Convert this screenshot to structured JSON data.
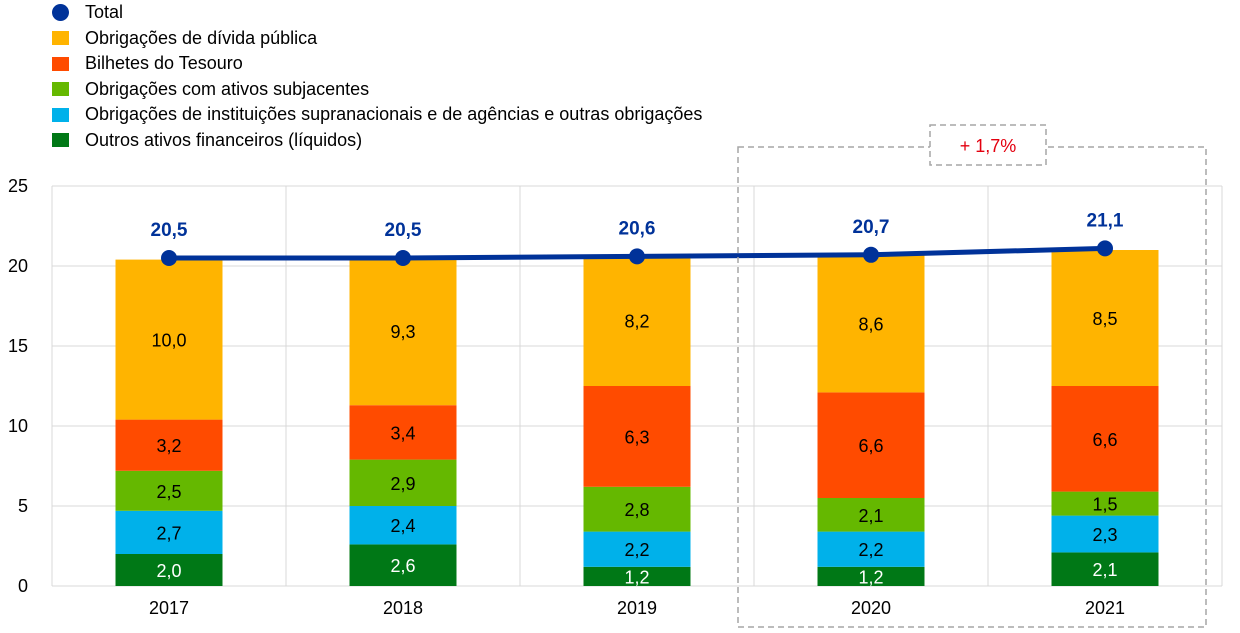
{
  "legend": [
    {
      "label": "Total",
      "marker": "dot",
      "color": "#003299"
    },
    {
      "label": "Obrigações de dívida pública",
      "marker": "square",
      "color": "#FFB400"
    },
    {
      "label": "Bilhetes do Tesouro",
      "marker": "square",
      "color": "#FF4B00"
    },
    {
      "label": "Obrigações com ativos subjacentes",
      "marker": "square",
      "color": "#65B800"
    },
    {
      "label": "Obrigações de instituições supranacionais e de agências e outras obrigações",
      "marker": "square",
      "color": "#00B1EA"
    },
    {
      "label": "Outros ativos financeiros (líquidos)",
      "marker": "square",
      "color": "#007816"
    }
  ],
  "chart_data": {
    "type": "bar",
    "stacked": true,
    "categories": [
      "2017",
      "2018",
      "2019",
      "2020",
      "2021"
    ],
    "ylim": [
      0,
      25
    ],
    "yticks": [
      0,
      5,
      10,
      15,
      20,
      25
    ],
    "grid": true,
    "series": [
      {
        "name": "Outros ativos financeiros (líquidos)",
        "color": "#007816",
        "label_color": "#ffffff",
        "values": [
          2.0,
          2.6,
          1.2,
          1.2,
          2.1
        ],
        "labels": [
          "2,0",
          "2,6",
          "1,2",
          "1,2",
          "2,1"
        ]
      },
      {
        "name": "Obrigações de instituições supranacionais e de agências e outras obrigações",
        "color": "#00B1EA",
        "label_color": "#000000",
        "values": [
          2.7,
          2.4,
          2.2,
          2.2,
          2.3
        ],
        "labels": [
          "2,7",
          "2,4",
          "2,2",
          "2,2",
          "2,3"
        ]
      },
      {
        "name": "Obrigações com ativos subjacentes",
        "color": "#65B800",
        "label_color": "#000000",
        "values": [
          2.5,
          2.9,
          2.8,
          2.1,
          1.5
        ],
        "labels": [
          "2,5",
          "2,9",
          "2,8",
          "2,1",
          "1,5"
        ]
      },
      {
        "name": "Bilhetes do Tesouro",
        "color": "#FF4B00",
        "label_color": "#000000",
        "values": [
          3.2,
          3.4,
          6.3,
          6.6,
          6.6
        ],
        "labels": [
          "3,2",
          "3,4",
          "6,3",
          "6,6",
          "6,6"
        ]
      },
      {
        "name": "Obrigações de dívida pública",
        "color": "#FFB400",
        "label_color": "#000000",
        "values": [
          10.0,
          9.3,
          8.2,
          8.6,
          8.5
        ],
        "labels": [
          "10,0",
          "9,3",
          "8,2",
          "8,6",
          "8,5"
        ]
      }
    ],
    "total": {
      "name": "Total",
      "color": "#003299",
      "values": [
        20.5,
        20.5,
        20.6,
        20.7,
        21.1
      ],
      "labels": [
        "20,5",
        "20,5",
        "20,6",
        "20,7",
        "21,1"
      ]
    },
    "annotation": {
      "text": "+ 1,7%",
      "color": "#E3000F",
      "categories": [
        "2020",
        "2021"
      ]
    }
  }
}
